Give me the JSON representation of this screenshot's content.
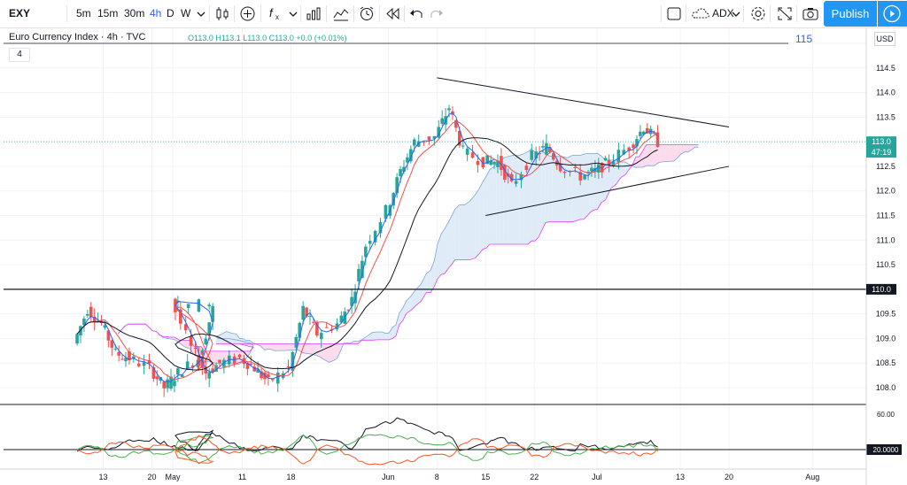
{
  "toolbar": {
    "symbol": "EXY",
    "intervals": [
      "5m",
      "15m",
      "30m",
      "4h",
      "D",
      "W"
    ],
    "active_interval": "4h",
    "indicator_label": "ADX",
    "publish_label": "Publish"
  },
  "legend": {
    "title": "Euro Currency Index · 4h · TVC",
    "ohlc": "O113.0  H113.1  L113.0  C113.0  +0.0 (+0.01%)",
    "level_label": "115",
    "indicator_count": "4",
    "currency": "USD"
  },
  "price_axis": {
    "ticks": [
      "115.0",
      "114.5",
      "114.0",
      "113.5",
      "113.0",
      "112.5",
      "112.0",
      "111.5",
      "111.0",
      "110.5",
      "110.0",
      "109.5",
      "109.0",
      "108.5",
      "108.0"
    ],
    "current_price": "113.0",
    "countdown": "47:19",
    "line_label": "110.0"
  },
  "adx_axis": {
    "ticks": [
      "60.00",
      "20.0000"
    ]
  },
  "time_axis": {
    "ticks": [
      "13",
      "20",
      "May",
      "11",
      "18",
      "Jun",
      "8",
      "15",
      "22",
      "Jul",
      "13",
      "20",
      "Aug"
    ]
  },
  "colors": {
    "up": "#26a69a",
    "down": "#ef5350",
    "cloud_fill": "#dbe9f5",
    "cloud_bear_fill": "#fbd7ea",
    "blue": "#2962ff",
    "accent": "#2196f3"
  },
  "chart_data": {
    "type": "candlestick",
    "title": "Euro Currency Index · 4h · TVC",
    "y_range": [
      107.6,
      115.2
    ],
    "horizontal_lines": [
      115.0,
      110.0
    ],
    "current": 113.0,
    "close_path": [
      {
        "date": "Apr 09",
        "close": 108.9
      },
      {
        "date": "Apr 11",
        "close": 109.6
      },
      {
        "date": "Apr 13",
        "close": 109.3
      },
      {
        "date": "Apr 15",
        "close": 108.7
      },
      {
        "date": "Apr 17",
        "close": 108.6
      },
      {
        "date": "Apr 20",
        "close": 108.4
      },
      {
        "date": "Apr 22",
        "close": 108.0
      },
      {
        "date": "Apr 24",
        "close": 108.3
      },
      {
        "date": "Apr 27",
        "close": 108.6
      },
      {
        "date": "Apr 29",
        "close": 109.6
      },
      {
        "date": "May 01",
        "close": 109.8
      },
      {
        "date": "May 04",
        "close": 108.8
      },
      {
        "date": "May 06",
        "close": 108.3
      },
      {
        "date": "May 08",
        "close": 108.5
      },
      {
        "date": "May 11",
        "close": 108.6
      },
      {
        "date": "May 13",
        "close": 108.4
      },
      {
        "date": "May 15",
        "close": 108.1
      },
      {
        "date": "May 18",
        "close": 108.4
      },
      {
        "date": "May 20",
        "close": 109.6
      },
      {
        "date": "May 22",
        "close": 109.1
      },
      {
        "date": "May 25",
        "close": 109.3
      },
      {
        "date": "May 27",
        "close": 109.8
      },
      {
        "date": "May 29",
        "close": 110.9
      },
      {
        "date": "Jun 01",
        "close": 111.6
      },
      {
        "date": "Jun 03",
        "close": 112.4
      },
      {
        "date": "Jun 05",
        "close": 113.0
      },
      {
        "date": "Jun 08",
        "close": 113.1
      },
      {
        "date": "Jun 10",
        "close": 113.7
      },
      {
        "date": "Jun 12",
        "close": 112.8
      },
      {
        "date": "Jun 15",
        "close": 112.6
      },
      {
        "date": "Jun 17",
        "close": 112.6
      },
      {
        "date": "Jun 19",
        "close": 112.1
      },
      {
        "date": "Jun 22",
        "close": 112.7
      },
      {
        "date": "Jun 24",
        "close": 112.9
      },
      {
        "date": "Jun 26",
        "close": 112.5
      },
      {
        "date": "Jun 29",
        "close": 112.3
      },
      {
        "date": "Jul 01",
        "close": 112.4
      },
      {
        "date": "Jul 03",
        "close": 112.6
      },
      {
        "date": "Jul 06",
        "close": 112.9
      },
      {
        "date": "Jul 08",
        "close": 113.3
      },
      {
        "date": "Jul 10",
        "close": 113.0
      }
    ],
    "triangle": {
      "upper": [
        {
          "date": "Jun 08",
          "price": 114.3
        },
        {
          "date": "Jul 20",
          "price": 113.3
        }
      ],
      "lower": [
        {
          "date": "Jun 15",
          "price": 111.5
        },
        {
          "date": "Jul 20",
          "price": 112.5
        }
      ]
    },
    "adx": {
      "levels": [
        60,
        20
      ]
    }
  }
}
